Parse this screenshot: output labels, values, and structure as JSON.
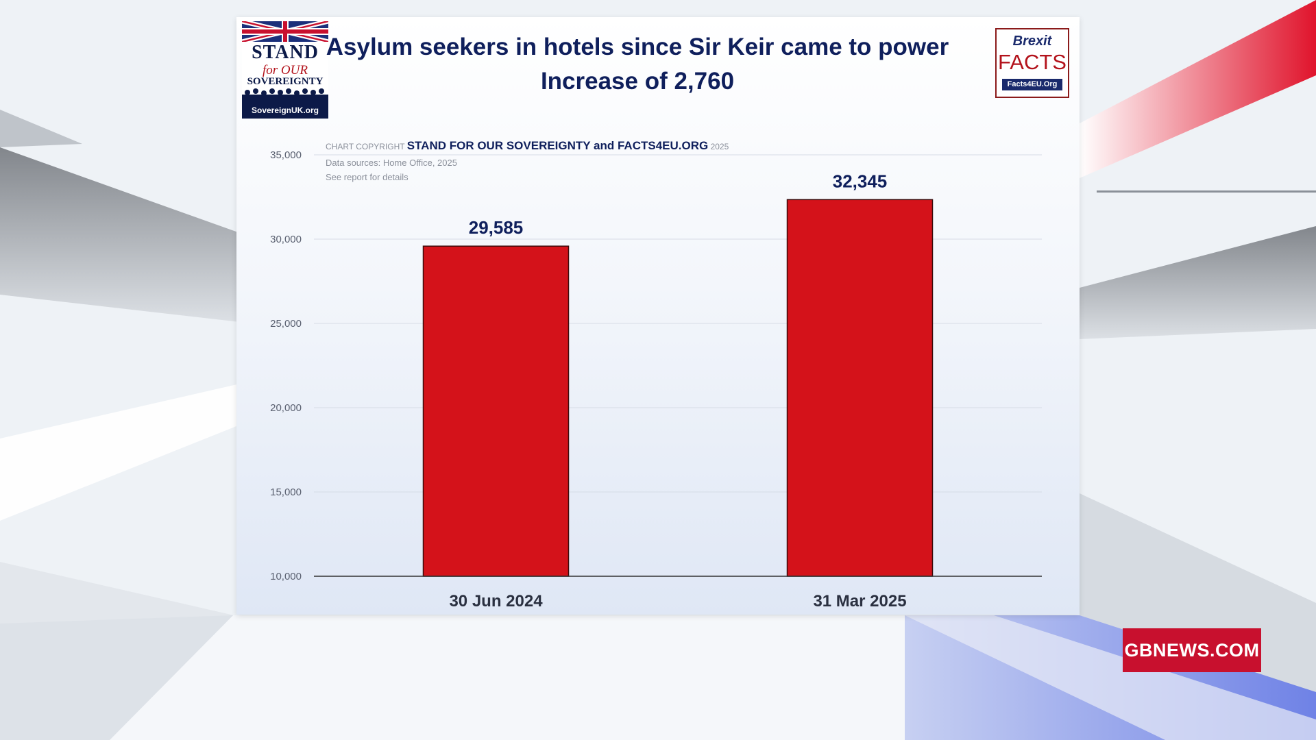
{
  "header": {
    "title_line1": "Asylum seekers in hotels since Sir Keir came to power",
    "title_line2": "Increase of 2,760"
  },
  "logos": {
    "sovereignty": {
      "line1": "STAND",
      "line2": "for OUR",
      "line3": "SOVEREIGNTY",
      "url": "SovereignUK.org"
    },
    "brexit_facts": {
      "line1": "Brexit",
      "line2": "FACTS",
      "url": "Facts4EU.Org"
    }
  },
  "copyright": {
    "prefix": "CHART COPYRIGHT",
    "owners": "STAND FOR OUR SOVEREIGNTY and  FACTS4EU.ORG",
    "year": "2025",
    "source_line": "Data sources: Home Office, 2025",
    "details_line": "See report for details"
  },
  "chart_data": {
    "type": "bar",
    "title": "Asylum seekers in hotels since Sir Keir came to power",
    "subtitle": "Increase of 2,760",
    "categories": [
      "30 Jun 2024",
      "31 Mar 2025"
    ],
    "values": [
      29585,
      32345
    ],
    "value_labels": [
      "29,585",
      "32,345"
    ],
    "ylim": [
      10000,
      35000
    ],
    "yticks": [
      10000,
      15000,
      20000,
      25000,
      30000,
      35000
    ],
    "ytick_labels": [
      "10,000",
      "15,000",
      "20,000",
      "25,000",
      "30,000",
      "35,000"
    ],
    "grid": true,
    "bar_color": "#d4121a",
    "xlabel": "",
    "ylabel": ""
  },
  "broadcast": {
    "badge": "GBNEWS.COM",
    "badge_color": "#c8102e"
  }
}
